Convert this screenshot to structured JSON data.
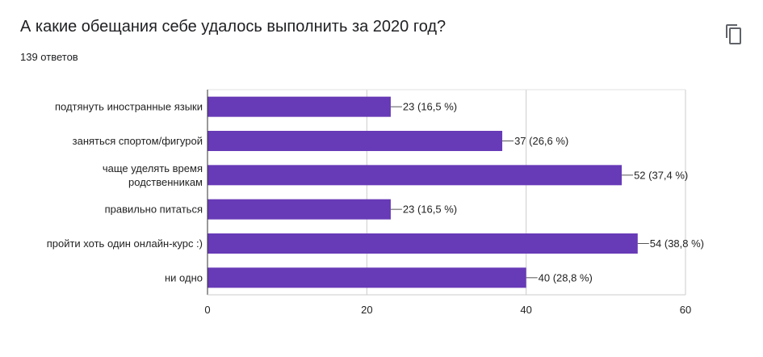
{
  "question": {
    "title": "А какие обещания себе удалось выполнить за 2020 год?",
    "response_count": "139 ответов",
    "copy_icon": "copy-icon"
  },
  "colors": {
    "bar": "#673ab7",
    "grid": "#cccccc",
    "axis": "#333333",
    "text": "#202124"
  },
  "chart_data": {
    "type": "bar",
    "orientation": "horizontal",
    "categories": [
      [
        "подтянуть иностранные языки"
      ],
      [
        "заняться спортом/фигурой"
      ],
      [
        "чаще уделять время",
        "родственникам"
      ],
      [
        "правильно питаться"
      ],
      [
        "пройти хоть один онлайн-курс :)"
      ],
      [
        "ни одно"
      ]
    ],
    "values": [
      23,
      37,
      52,
      23,
      54,
      40
    ],
    "data_labels": [
      "23 (16,5 %)",
      "37 (26,6 %)",
      "52 (37,4 %)",
      "23 (16,5 %)",
      "54 (38,8 %)",
      "40 (28,8 %)"
    ],
    "xlim": [
      0,
      60
    ],
    "xticks": [
      0,
      20,
      40,
      60
    ],
    "grid": true,
    "title": "",
    "xlabel": "",
    "ylabel": ""
  }
}
